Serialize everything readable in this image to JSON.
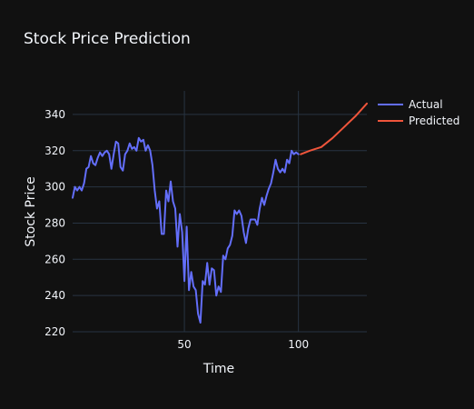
{
  "chart_data": {
    "type": "line",
    "title": "Stock Price Prediction",
    "xlabel": "Time",
    "ylabel": "Stock Price",
    "xlim": [
      1,
      130
    ],
    "ylim": [
      220,
      353
    ],
    "x_ticks": [
      50,
      100
    ],
    "y_ticks": [
      220,
      240,
      260,
      280,
      300,
      320,
      340
    ],
    "grid": true,
    "legend_position": "top-right",
    "series": [
      {
        "name": "Actual",
        "color": "#636efa",
        "x": [
          1,
          2,
          3,
          4,
          5,
          6,
          7,
          8,
          9,
          10,
          11,
          12,
          13,
          14,
          15,
          16,
          17,
          18,
          19,
          20,
          21,
          22,
          23,
          24,
          25,
          26,
          27,
          28,
          29,
          30,
          31,
          32,
          33,
          34,
          35,
          36,
          37,
          38,
          39,
          40,
          41,
          42,
          43,
          44,
          45,
          46,
          47,
          48,
          49,
          50,
          51,
          52,
          53,
          54,
          55,
          56,
          57,
          58,
          59,
          60,
          61,
          62,
          63,
          64,
          65,
          66,
          67,
          68,
          69,
          70,
          71,
          72,
          73,
          74,
          75,
          76,
          77,
          78,
          79,
          80,
          81,
          82,
          83,
          84,
          85,
          86,
          87,
          88,
          89,
          90,
          91,
          92,
          93,
          94,
          95,
          96,
          97,
          98,
          99,
          100
        ],
        "y": [
          294,
          300,
          298,
          300,
          298,
          302,
          310,
          311,
          317,
          313,
          312,
          316,
          319,
          317,
          319,
          320,
          318,
          310,
          318,
          325,
          324,
          311,
          309,
          318,
          320,
          324,
          321,
          322,
          320,
          327,
          325,
          326,
          320,
          323,
          320,
          312,
          298,
          288,
          292,
          274,
          274,
          298,
          292,
          303,
          292,
          288,
          267,
          285,
          275,
          248,
          278,
          243,
          253,
          245,
          243,
          230,
          225,
          248,
          246,
          258,
          246,
          255,
          254,
          240,
          245,
          242,
          262,
          260,
          266,
          268,
          273,
          287,
          285,
          287,
          284,
          275,
          269,
          277,
          282,
          282,
          282,
          279,
          288,
          294,
          290,
          295,
          299,
          302,
          308,
          315,
          310,
          308,
          310,
          308,
          315,
          313,
          320,
          318,
          319,
          318
        ]
      },
      {
        "name": "Predicted",
        "color": "#ef553b",
        "x": [
          101,
          105,
          110,
          115,
          120,
          125,
          130
        ],
        "y": [
          318,
          320,
          322,
          327,
          333,
          339,
          346
        ]
      }
    ]
  }
}
